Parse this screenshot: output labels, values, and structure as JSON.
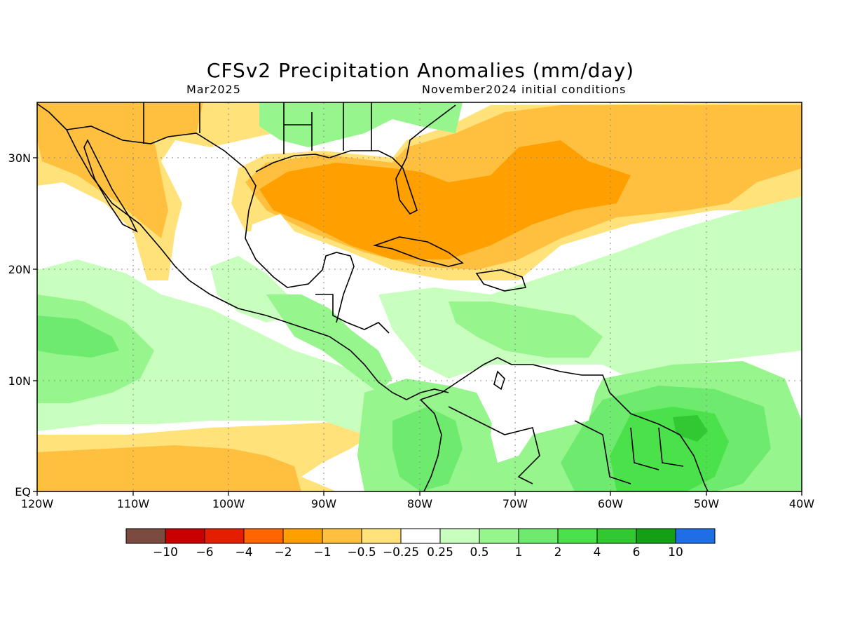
{
  "title": "CFSv2 Precipitation Anomalies (mm/day)",
  "subtitle_left": "Mar2025",
  "subtitle_right": "November2024 initial conditions",
  "map": {
    "lon_range": [
      -120,
      -40
    ],
    "lat_range": [
      0,
      35
    ],
    "x_ticks": [
      "120W",
      "110W",
      "100W",
      "90W",
      "80W",
      "70W",
      "60W",
      "50W",
      "40W"
    ],
    "y_ticks": [
      "EQ",
      "10N",
      "20N",
      "30N"
    ],
    "grid": true
  },
  "colorbar": {
    "colors": [
      "#7a4b3e",
      "#c80000",
      "#e41e00",
      "#ff6600",
      "#ffa000",
      "#ffc040",
      "#ffe27a",
      "#ffffff",
      "#c8ffbe",
      "#96f58c",
      "#6eeb6e",
      "#4be14b",
      "#32c832",
      "#14a014",
      "#1e6ee6"
    ],
    "labels": [
      "-10",
      "-6",
      "-4",
      "-2",
      "-1",
      "-0.5",
      "-0.25",
      "0.25",
      "0.5",
      "1",
      "2",
      "4",
      "6",
      "10"
    ]
  }
}
